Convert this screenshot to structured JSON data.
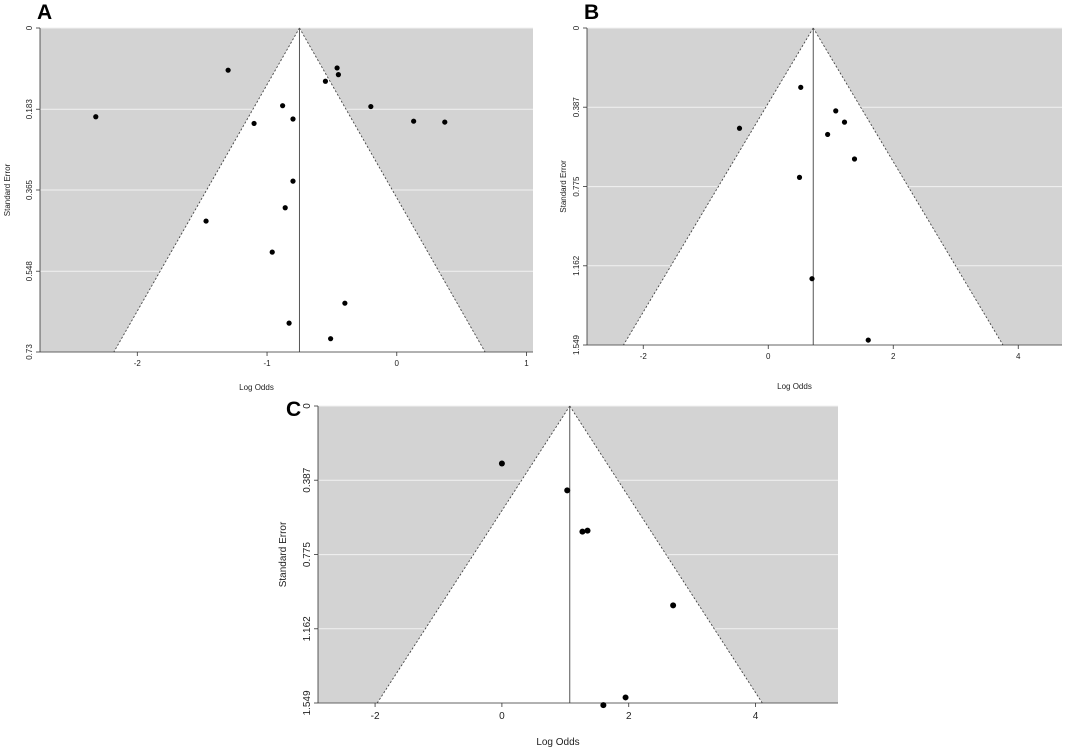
{
  "chart_data": [
    {
      "panel_label": "A",
      "type": "scatter",
      "xlabel": "Log Odds",
      "ylabel": "Standard Error",
      "xlim": [
        -2.75,
        1.05
      ],
      "ylim": [
        0,
        0.73
      ],
      "y_reversed": true,
      "x_ticks": [
        "-2",
        "-1",
        "0",
        "1"
      ],
      "y_ticks": [
        "0",
        "0.183",
        "0.365",
        "0.548",
        "0.73"
      ],
      "grid": "horizontal",
      "summary_estimate": -0.75,
      "points": [
        {
          "x": -2.32,
          "y": 0.2
        },
        {
          "x": -1.3,
          "y": 0.095
        },
        {
          "x": -1.1,
          "y": 0.215
        },
        {
          "x": -1.47,
          "y": 0.435
        },
        {
          "x": -0.88,
          "y": 0.175
        },
        {
          "x": -0.8,
          "y": 0.205
        },
        {
          "x": -0.8,
          "y": 0.345
        },
        {
          "x": -0.86,
          "y": 0.405
        },
        {
          "x": -0.96,
          "y": 0.505
        },
        {
          "x": -0.83,
          "y": 0.665
        },
        {
          "x": -0.55,
          "y": 0.12
        },
        {
          "x": -0.46,
          "y": 0.09
        },
        {
          "x": -0.45,
          "y": 0.105
        },
        {
          "x": -0.2,
          "y": 0.177
        },
        {
          "x": 0.13,
          "y": 0.21
        },
        {
          "x": 0.37,
          "y": 0.212
        },
        {
          "x": -0.4,
          "y": 0.62
        },
        {
          "x": -0.51,
          "y": 0.7
        }
      ]
    },
    {
      "panel_label": "B",
      "type": "scatter",
      "xlabel": "Log Odds",
      "ylabel": "Standard Error",
      "xlim": [
        -2.9,
        4.7
      ],
      "ylim": [
        0,
        1.549
      ],
      "y_reversed": true,
      "x_ticks": [
        "-2",
        "0",
        "2",
        "4"
      ],
      "y_ticks": [
        "0",
        "0.387",
        "0.775",
        "1.162",
        "1.549"
      ],
      "grid": "horizontal",
      "summary_estimate": 0.72,
      "points": [
        {
          "x": -0.46,
          "y": 0.49
        },
        {
          "x": 0.52,
          "y": 0.29
        },
        {
          "x": 0.5,
          "y": 0.73
        },
        {
          "x": 0.95,
          "y": 0.52
        },
        {
          "x": 1.08,
          "y": 0.405
        },
        {
          "x": 1.22,
          "y": 0.46
        },
        {
          "x": 1.38,
          "y": 0.64
        },
        {
          "x": 0.7,
          "y": 1.225
        },
        {
          "x": 1.6,
          "y": 1.525
        }
      ]
    },
    {
      "panel_label": "C",
      "type": "scatter",
      "xlabel": "Log Odds",
      "ylabel": "Standard Error",
      "xlim": [
        -2.9,
        5.3
      ],
      "ylim": [
        0,
        1.549
      ],
      "y_reversed": true,
      "x_ticks": [
        "-2",
        "0",
        "2",
        "4"
      ],
      "y_ticks": [
        "0",
        "0.387",
        "0.775",
        "1.162",
        "1.549"
      ],
      "grid": "horizontal",
      "summary_estimate": 1.07,
      "points": [
        {
          "x": 0.0,
          "y": 0.3
        },
        {
          "x": 1.03,
          "y": 0.44
        },
        {
          "x": 1.27,
          "y": 0.655
        },
        {
          "x": 1.35,
          "y": 0.65
        },
        {
          "x": 2.7,
          "y": 1.04
        },
        {
          "x": 1.95,
          "y": 1.52
        },
        {
          "x": 1.6,
          "y": 1.56
        }
      ]
    }
  ]
}
